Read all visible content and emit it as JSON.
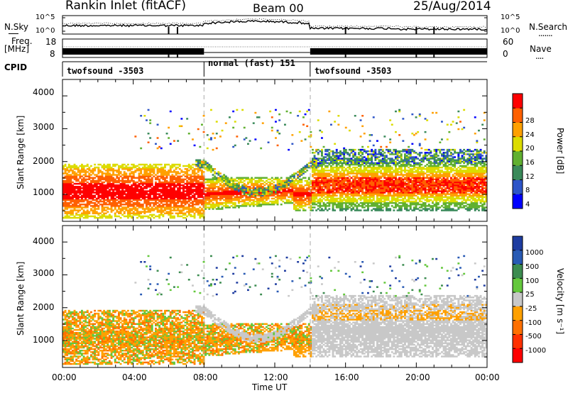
{
  "header": {
    "title": "Rankin Inlet (fitACF)",
    "beam": "Beam 00",
    "date": "25/Aug/2014"
  },
  "top_panels": {
    "noise": {
      "left_label": "N.Sky",
      "right_label": "N.Search",
      "right_dots": ".......",
      "left_ticks": [
        "10^5",
        "10^0"
      ],
      "right_ticks": [
        "10^5",
        "10^0"
      ]
    },
    "freq": {
      "left_label": "Freq.",
      "left_unit": "[MHz]",
      "left_ticks": [
        "18",
        "8"
      ],
      "right_label": "Nave",
      "right_dots": "....",
      "right_ticks": [
        "60",
        "0"
      ]
    },
    "cpid": {
      "label": "CPID",
      "segments": [
        {
          "start_h": 0,
          "end_h": 8,
          "text": "twofsound -3503"
        },
        {
          "start_h": 8,
          "end_h": 14,
          "text": "normal (fast) 151"
        },
        {
          "start_h": 14,
          "end_h": 24,
          "text": "twofsound -3503"
        }
      ]
    }
  },
  "axes": {
    "x_ticks": [
      "00:00",
      "04:00",
      "08:00",
      "12:00",
      "16:00",
      "20:00",
      "00:00"
    ],
    "x_label": "Time UT",
    "y_label": "Slant Range [km]",
    "y_ticks": [
      "1000",
      "2000",
      "3000",
      "4000"
    ]
  },
  "colorbars": {
    "power": {
      "label": "Power [dB]",
      "ticks": [
        "4",
        "8",
        "12",
        "16",
        "20",
        "24",
        "28"
      ],
      "colors": [
        "#0000ff",
        "#2d55c8",
        "#3a8a5a",
        "#60b030",
        "#dcdc00",
        "#ffa000",
        "#ff6000",
        "#ff0000"
      ]
    },
    "velocity": {
      "label": "Velocity [m s⁻¹]",
      "ticks": [
        "1000",
        "500",
        "100",
        "25",
        "-25",
        "-100",
        "-500",
        "-1000"
      ],
      "colors": [
        "#1e3ca0",
        "#285ab4",
        "#3c8c50",
        "#64c83c",
        "#c8c8c8",
        "#ffa000",
        "#ff7000",
        "#ff3000",
        "#ff0000"
      ]
    }
  },
  "chart_data": {
    "type": "heatmap",
    "x_range_h": [
      0,
      24
    ],
    "y_range_km": [
      180,
      4500
    ],
    "panels": [
      "Power",
      "Velocity"
    ],
    "features": [
      {
        "name": "main-band",
        "time_h": [
          0,
          24
        ],
        "range_km": [
          450,
          1900
        ]
      },
      {
        "name": "upper-band",
        "time_h": [
          14,
          24
        ],
        "range_km": [
          1500,
          2300
        ]
      },
      {
        "name": "arc-echo",
        "time_h": [
          6,
          14
        ],
        "range_km": [
          900,
          2000
        ]
      }
    ]
  }
}
